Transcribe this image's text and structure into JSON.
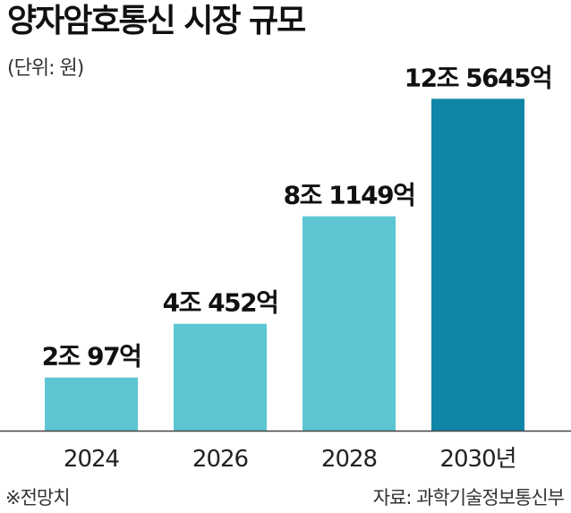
{
  "title": "양자암호통신 시장 규모",
  "unit_note": "(단위: 원)",
  "footnote": "※전망치",
  "source": "자료: 과학기술정보통신부",
  "chart_data": {
    "type": "bar",
    "title": "양자암호통신 시장 규모",
    "categories": [
      "2024",
      "2026",
      "2028",
      "2030년"
    ],
    "values": [
      20097,
      40452,
      81149,
      125645
    ],
    "value_labels": [
      "2조 97억",
      "4조 452억",
      "8조 1149억",
      "12조 5645억"
    ],
    "ylim": [
      0,
      140000
    ],
    "colors": [
      "#5cc6d2",
      "#5cc6d2",
      "#5cc6d2",
      "#0f86a8"
    ],
    "grid": false,
    "legend": "none"
  }
}
